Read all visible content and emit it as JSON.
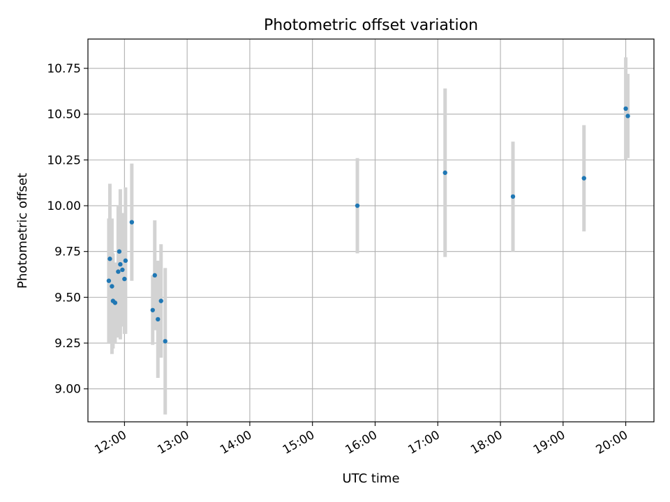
{
  "chart_data": {
    "type": "scatter",
    "title": "Photometric offset variation",
    "xlabel": "UTC time",
    "ylabel": "Photometric offset",
    "x_ticks": [
      "12:00",
      "13:00",
      "14:00",
      "15:00",
      "16:00",
      "17:00",
      "18:00",
      "19:00",
      "20:00"
    ],
    "y_ticks": [
      "9.00",
      "9.25",
      "9.50",
      "9.75",
      "10.00",
      "10.25",
      "10.50",
      "10.75"
    ],
    "xlim": [
      "11:25",
      "20:27"
    ],
    "ylim": [
      8.82,
      10.91
    ],
    "grid": true,
    "point_color": "#1f77b4",
    "errorbar_color": "#d3d3d3",
    "series": [
      {
        "points": [
          {
            "x": "11:45",
            "y": 9.59,
            "err": 0.34
          },
          {
            "x": "11:46",
            "y": 9.71,
            "err": 0.41
          },
          {
            "x": "11:48",
            "y": 9.56,
            "err": 0.37
          },
          {
            "x": "11:49",
            "y": 9.48,
            "err": 0.26
          },
          {
            "x": "11:51",
            "y": 9.47,
            "err": 0.22
          },
          {
            "x": "11:54",
            "y": 9.64,
            "err": 0.36
          },
          {
            "x": "11:55",
            "y": 9.75,
            "err": 0.25
          },
          {
            "x": "11:56",
            "y": 9.68,
            "err": 0.41
          },
          {
            "x": "11:58",
            "y": 9.65,
            "err": 0.31
          },
          {
            "x": "12:00",
            "y": 9.6,
            "err": 0.3
          },
          {
            "x": "12:01",
            "y": 9.7,
            "err": 0.4
          },
          {
            "x": "12:07",
            "y": 9.91,
            "err": 0.32
          },
          {
            "x": "12:27",
            "y": 9.43,
            "err": 0.19
          },
          {
            "x": "12:29",
            "y": 9.62,
            "err": 0.3
          },
          {
            "x": "12:32",
            "y": 9.38,
            "err": 0.32
          },
          {
            "x": "12:35",
            "y": 9.48,
            "err": 0.31
          },
          {
            "x": "12:39",
            "y": 9.26,
            "err": 0.4
          },
          {
            "x": "15:43",
            "y": 10.0,
            "err": 0.26
          },
          {
            "x": "17:07",
            "y": 10.18,
            "err": 0.46
          },
          {
            "x": "18:12",
            "y": 10.05,
            "err": 0.3
          },
          {
            "x": "19:20",
            "y": 10.15,
            "err": 0.29
          },
          {
            "x": "20:00",
            "y": 10.53,
            "err": 0.28
          },
          {
            "x": "20:02",
            "y": 10.49,
            "err": 0.23
          }
        ]
      }
    ]
  }
}
